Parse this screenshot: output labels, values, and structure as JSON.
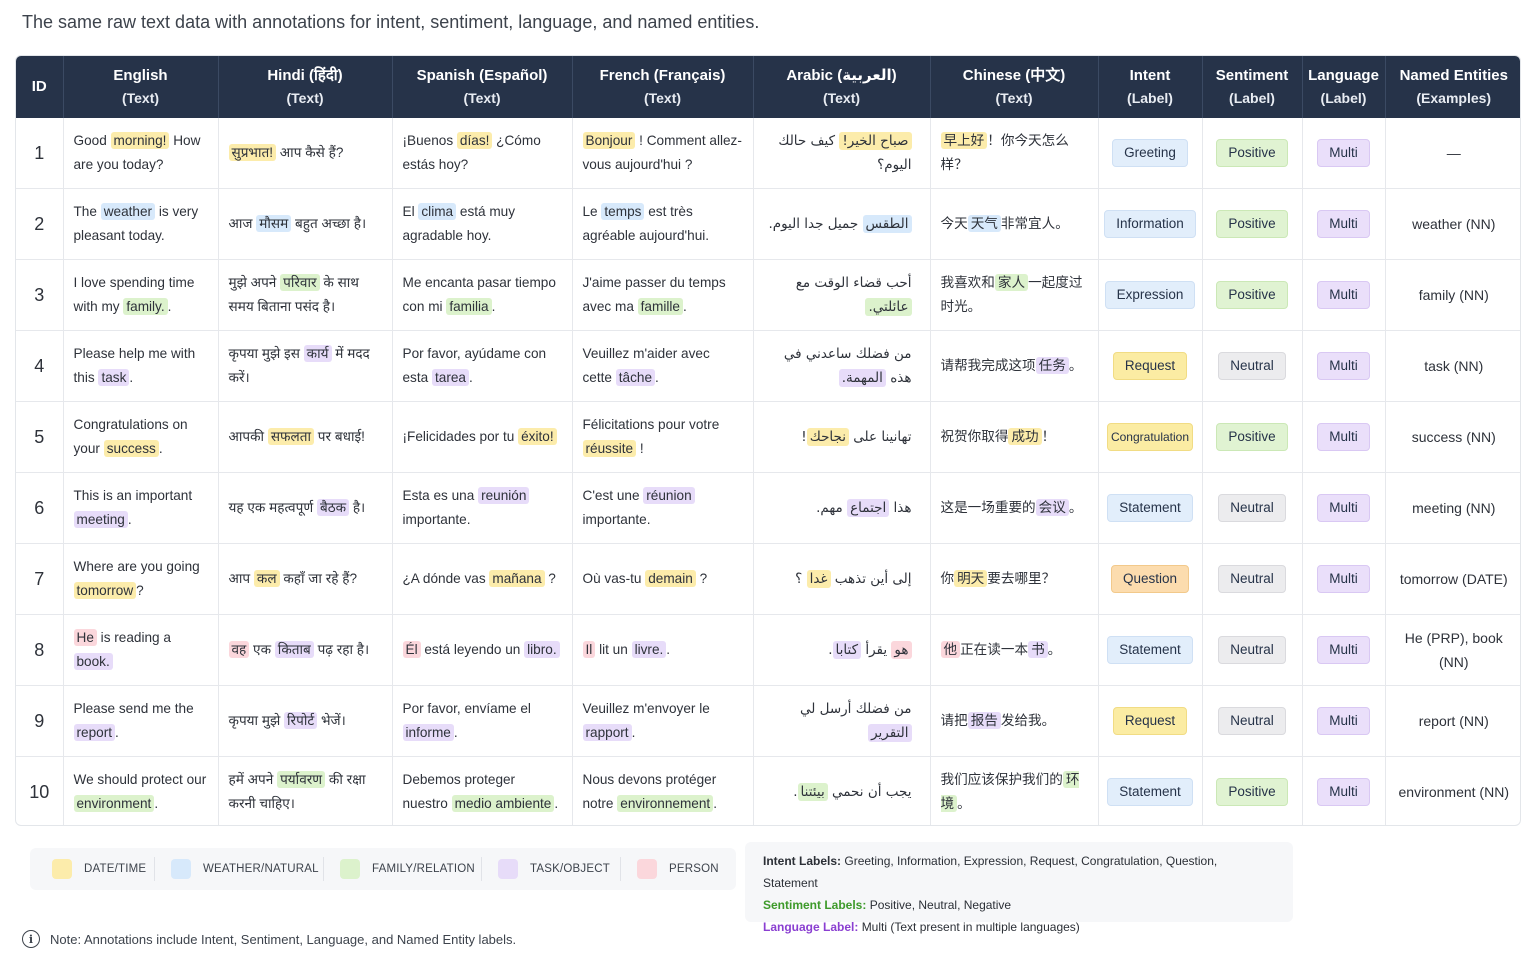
{
  "title": "The same raw text data with annotations for intent, sentiment, language, and named entities.",
  "columns": [
    {
      "main": "ID",
      "sub": ""
    },
    {
      "main": "English",
      "sub": "(Text)"
    },
    {
      "main": "Hindi (हिंदी)",
      "sub": "(Text)"
    },
    {
      "main": "Spanish (Español)",
      "sub": "(Text)"
    },
    {
      "main": "French (Français)",
      "sub": "(Text)"
    },
    {
      "main": "Arabic (العربية)",
      "sub": "(Text)"
    },
    {
      "main": "Chinese (中文)",
      "sub": "(Text)"
    },
    {
      "main": "Intent",
      "sub": "(Label)"
    },
    {
      "main": "Sentiment",
      "sub": "(Label)"
    },
    {
      "main": "Language",
      "sub": "(Label)"
    },
    {
      "main": "Named Entities",
      "sub": "(Examples)"
    }
  ],
  "highlight_colors": {
    "date": "#fcecab",
    "weather": "#d7e9fb",
    "family": "#dcf2cc",
    "task": "#e7dcf9",
    "person": "#fbd7dc"
  },
  "rows": [
    {
      "id": "1",
      "en": [
        [
          "Good ",
          ""
        ],
        [
          "morning!",
          "date"
        ],
        [
          " How are you today?",
          ""
        ]
      ],
      "hi": [
        [
          "सुप्रभात!",
          "date"
        ],
        [
          " आप कैसे हैं?",
          ""
        ]
      ],
      "es": [
        [
          "¡Buenos ",
          ""
        ],
        [
          "días!",
          "date"
        ],
        [
          " ¿Cómo estás hoy?",
          ""
        ]
      ],
      "fr": [
        [
          "Bonjour",
          "date"
        ],
        [
          " ! Comment allez-vous aujourd'hui ?",
          ""
        ]
      ],
      "ar": [
        [
          "صباح الخير!",
          "date"
        ],
        [
          " كيف حالك اليوم؟",
          ""
        ]
      ],
      "zh": [
        [
          "早上好",
          "date"
        ],
        [
          "！你今天怎么样？",
          ""
        ]
      ],
      "intent": "Greeting",
      "intent_color": "blue",
      "sentiment": "Positive",
      "sentiment_color": "green",
      "language": "Multi",
      "entities": "—"
    },
    {
      "id": "2",
      "en": [
        [
          "The ",
          ""
        ],
        [
          "weather",
          "weather"
        ],
        [
          " is very pleasant today.",
          ""
        ]
      ],
      "hi": [
        [
          "आज ",
          ""
        ],
        [
          "मौसम",
          "weather"
        ],
        [
          " बहुत अच्छा है।",
          ""
        ]
      ],
      "es": [
        [
          "El ",
          ""
        ],
        [
          "clima",
          "weather"
        ],
        [
          " está muy agradable hoy.",
          ""
        ]
      ],
      "fr": [
        [
          "Le ",
          ""
        ],
        [
          "temps",
          "weather"
        ],
        [
          " est très agréable aujourd'hui.",
          ""
        ]
      ],
      "ar": [
        [
          "الطقس",
          "weather"
        ],
        [
          " جميل جدا اليوم.",
          ""
        ]
      ],
      "zh": [
        [
          "今天",
          ""
        ],
        [
          "天气",
          "weather"
        ],
        [
          "非常宜人。",
          ""
        ]
      ],
      "intent": "Information",
      "intent_color": "blue",
      "sentiment": "Positive",
      "sentiment_color": "green",
      "language": "Multi",
      "entities": "weather (NN)"
    },
    {
      "id": "3",
      "en": [
        [
          "I love spending time with my ",
          ""
        ],
        [
          "family.",
          "family"
        ],
        [
          ".",
          ""
        ]
      ],
      "hi": [
        [
          "मुझे अपने ",
          ""
        ],
        [
          "परिवार",
          "family"
        ],
        [
          " के साथ समय बिताना पसंद है।",
          ""
        ]
      ],
      "es": [
        [
          "Me encanta pasar tiempo con mi ",
          ""
        ],
        [
          "familia",
          "family"
        ],
        [
          ".",
          ""
        ]
      ],
      "fr": [
        [
          "J'aime passer du temps avec ma ",
          ""
        ],
        [
          "famille",
          "family"
        ],
        [
          ".",
          ""
        ]
      ],
      "ar": [
        [
          "أحب قضاء الوقت مع ",
          ""
        ],
        [
          "عائلتي.",
          "family"
        ]
      ],
      "zh": [
        [
          "我喜欢和",
          ""
        ],
        [
          "家人",
          "family"
        ],
        [
          "一起度过时光。",
          ""
        ]
      ],
      "intent": "Expression",
      "intent_color": "blue",
      "sentiment": "Positive",
      "sentiment_color": "green",
      "language": "Multi",
      "entities": "family (NN)"
    },
    {
      "id": "4",
      "en": [
        [
          "Please help me with this ",
          ""
        ],
        [
          "task",
          "task"
        ],
        [
          ".",
          ""
        ]
      ],
      "hi": [
        [
          "कृपया मुझे इस ",
          ""
        ],
        [
          "कार्य",
          "task"
        ],
        [
          " में मदद करें।",
          ""
        ]
      ],
      "es": [
        [
          "Por favor, ayúdame con esta ",
          ""
        ],
        [
          "tarea",
          "task"
        ],
        [
          ".",
          ""
        ]
      ],
      "fr": [
        [
          "Veuillez m'aider avec cette ",
          ""
        ],
        [
          "tâche",
          "task"
        ],
        [
          ".",
          ""
        ]
      ],
      "ar": [
        [
          "من فضلك ساعدني في هذه ",
          ""
        ],
        [
          "المهمة.",
          "task"
        ]
      ],
      "zh": [
        [
          "请帮我完成这项",
          ""
        ],
        [
          "任务",
          "task"
        ],
        [
          "。",
          ""
        ]
      ],
      "intent": "Request",
      "intent_color": "yellow",
      "sentiment": "Neutral",
      "sentiment_color": "gray",
      "language": "Multi",
      "entities": "task (NN)"
    },
    {
      "id": "5",
      "en": [
        [
          "Congratulations on your ",
          ""
        ],
        [
          "success",
          "date"
        ],
        [
          ".",
          ""
        ]
      ],
      "hi": [
        [
          "आपकी ",
          ""
        ],
        [
          "सफलता",
          "date"
        ],
        [
          " पर बधाई!",
          ""
        ]
      ],
      "es": [
        [
          "¡Felicidades por tu ",
          ""
        ],
        [
          "éxito!",
          "date"
        ]
      ],
      "fr": [
        [
          "Félicitations pour votre ",
          ""
        ],
        [
          "réussite",
          "date"
        ],
        [
          " !",
          ""
        ]
      ],
      "ar": [
        [
          "تهانينا على ",
          ""
        ],
        [
          "نجاحك",
          "date"
        ],
        [
          "!",
          ""
        ]
      ],
      "zh": [
        [
          "祝贺你取得",
          ""
        ],
        [
          "成功",
          "date"
        ],
        [
          "！",
          ""
        ]
      ],
      "intent": "Congratulation",
      "intent_color": "yellow-small",
      "sentiment": "Positive",
      "sentiment_color": "green",
      "language": "Multi",
      "entities": "success (NN)"
    },
    {
      "id": "6",
      "en": [
        [
          "This is an important ",
          ""
        ],
        [
          "meeting",
          "task"
        ],
        [
          ".",
          ""
        ]
      ],
      "hi": [
        [
          "यह एक महत्वपूर्ण ",
          ""
        ],
        [
          "बैठक",
          "task"
        ],
        [
          " है।",
          ""
        ]
      ],
      "es": [
        [
          "Esta es una ",
          ""
        ],
        [
          "reunión",
          "task"
        ],
        [
          " importante.",
          ""
        ]
      ],
      "fr": [
        [
          "C'est une ",
          ""
        ],
        [
          "réunion",
          "task"
        ],
        [
          " importante.",
          ""
        ]
      ],
      "ar": [
        [
          "هذا ",
          ""
        ],
        [
          "اجتماع",
          "task"
        ],
        [
          " مهم.",
          ""
        ]
      ],
      "zh": [
        [
          "这是一场重要的",
          ""
        ],
        [
          "会议",
          "task"
        ],
        [
          "。",
          ""
        ]
      ],
      "intent": "Statement",
      "intent_color": "blue",
      "sentiment": "Neutral",
      "sentiment_color": "gray",
      "language": "Multi",
      "entities": "meeting (NN)"
    },
    {
      "id": "7",
      "en": [
        [
          "Where are you going ",
          ""
        ],
        [
          "tomorrow",
          "date"
        ],
        [
          "?",
          ""
        ]
      ],
      "hi": [
        [
          "आप ",
          ""
        ],
        [
          "कल",
          "date"
        ],
        [
          " कहाँ जा रहे हैं?",
          ""
        ]
      ],
      "es": [
        [
          "¿A dónde vas ",
          ""
        ],
        [
          "mañana",
          "date"
        ],
        [
          " ?",
          ""
        ]
      ],
      "fr": [
        [
          "Où vas-tu ",
          ""
        ],
        [
          "demain",
          "date"
        ],
        [
          " ?",
          ""
        ]
      ],
      "ar": [
        [
          "إلى أين تذهب ",
          ""
        ],
        [
          "غدا",
          "date"
        ],
        [
          " ؟",
          ""
        ]
      ],
      "zh": [
        [
          "你",
          ""
        ],
        [
          "明天",
          "date"
        ],
        [
          "要去哪里？",
          ""
        ]
      ],
      "intent": "Question",
      "intent_color": "orange",
      "sentiment": "Neutral",
      "sentiment_color": "gray",
      "language": "Multi",
      "entities": "tomorrow (DATE)"
    },
    {
      "id": "8",
      "en": [
        [
          "He",
          "person"
        ],
        [
          " is reading a ",
          ""
        ],
        [
          "book.",
          "task"
        ]
      ],
      "hi": [
        [
          "वह",
          "person"
        ],
        [
          " एक ",
          ""
        ],
        [
          "किताब",
          "task"
        ],
        [
          " पढ़ रहा है।",
          ""
        ]
      ],
      "es": [
        [
          "Él",
          "person"
        ],
        [
          " está leyendo un ",
          ""
        ],
        [
          "libro.",
          "task"
        ]
      ],
      "fr": [
        [
          "Il",
          "person"
        ],
        [
          " lit un ",
          ""
        ],
        [
          "livre.",
          "task"
        ],
        [
          ".",
          ""
        ]
      ],
      "ar": [
        [
          "هو",
          "person"
        ],
        [
          " يقرأ ",
          ""
        ],
        [
          "كتابا",
          "task"
        ],
        [
          ".",
          ""
        ]
      ],
      "zh": [
        [
          "他",
          "person"
        ],
        [
          "正在读一本",
          ""
        ],
        [
          "书",
          "task"
        ],
        [
          "。",
          ""
        ]
      ],
      "intent": "Statement",
      "intent_color": "blue",
      "sentiment": "Neutral",
      "sentiment_color": "gray",
      "language": "Multi",
      "entities": "He (PRP), book (NN)"
    },
    {
      "id": "9",
      "en": [
        [
          "Please send me the ",
          ""
        ],
        [
          "report",
          "task"
        ],
        [
          ".",
          ""
        ]
      ],
      "hi": [
        [
          "कृपया मुझे ",
          ""
        ],
        [
          "रिपोर्ट",
          "task"
        ],
        [
          " भेजें।",
          ""
        ]
      ],
      "es": [
        [
          "Por favor, envíame el ",
          ""
        ],
        [
          "informe",
          "task"
        ],
        [
          ".",
          ""
        ]
      ],
      "fr": [
        [
          "Veuillez m'envoyer le ",
          ""
        ],
        [
          "rapport",
          "task"
        ],
        [
          ".",
          ""
        ]
      ],
      "ar": [
        [
          "من فضلك أرسل لي ",
          ""
        ],
        [
          "التقرير",
          "task"
        ]
      ],
      "zh": [
        [
          "请把",
          ""
        ],
        [
          "报告",
          "task"
        ],
        [
          "发给我。",
          ""
        ]
      ],
      "intent": "Request",
      "intent_color": "yellow",
      "sentiment": "Neutral",
      "sentiment_color": "gray",
      "language": "Multi",
      "entities": "report (NN)"
    },
    {
      "id": "10",
      "en": [
        [
          "We should protect our ",
          ""
        ],
        [
          "environment",
          "family"
        ],
        [
          ".",
          ""
        ]
      ],
      "hi": [
        [
          "हमें अपने ",
          ""
        ],
        [
          "पर्यावरण",
          "family"
        ],
        [
          " की रक्षा करनी चाहिए।",
          ""
        ]
      ],
      "es": [
        [
          "Debemos proteger nuestro ",
          ""
        ],
        [
          "medio ambiente",
          "family"
        ],
        [
          ".",
          ""
        ]
      ],
      "fr": [
        [
          "Nous devons protéger notre ",
          ""
        ],
        [
          "environnement",
          "family"
        ],
        [
          ".",
          ""
        ]
      ],
      "ar": [
        [
          "يجب أن نحمي ",
          ""
        ],
        [
          "بيئتنا",
          "family"
        ],
        [
          ".",
          ""
        ]
      ],
      "zh": [
        [
          "我们应该保护我们的",
          ""
        ],
        [
          "环境",
          "family"
        ],
        [
          "。",
          ""
        ]
      ],
      "intent": "Statement",
      "intent_color": "blue",
      "sentiment": "Positive",
      "sentiment_color": "green",
      "language": "Multi",
      "entities": "environment (NN)"
    }
  ],
  "legend": [
    {
      "label": "DATE/TIME",
      "color": "#fcecab"
    },
    {
      "label": "WEATHER/NATURAL",
      "color": "#d7e9fb"
    },
    {
      "label": "FAMILY/RELATION",
      "color": "#dcf2cc"
    },
    {
      "label": "TASK/OBJECT",
      "color": "#e7dcf9"
    },
    {
      "label": "PERSON",
      "color": "#fbd7dc"
    }
  ],
  "label_info": {
    "intent_key": "Intent Labels:",
    "intent_val": "Greeting, Information, Expression, Request, Congratulation, Question, Statement",
    "intent_color": "#263349",
    "sentiment_key": "Sentiment Labels:",
    "sentiment_val": "Positive, Neutral, Negative",
    "sentiment_color": "#3d9a2a",
    "language_key": "Language Label:",
    "language_val": "Multi (Text present in multiple languages)",
    "language_color": "#8a3fd1"
  },
  "note": "Note: Annotations include Intent, Sentiment, Language, and Named Entity labels.",
  "note_icon": "info-icon"
}
